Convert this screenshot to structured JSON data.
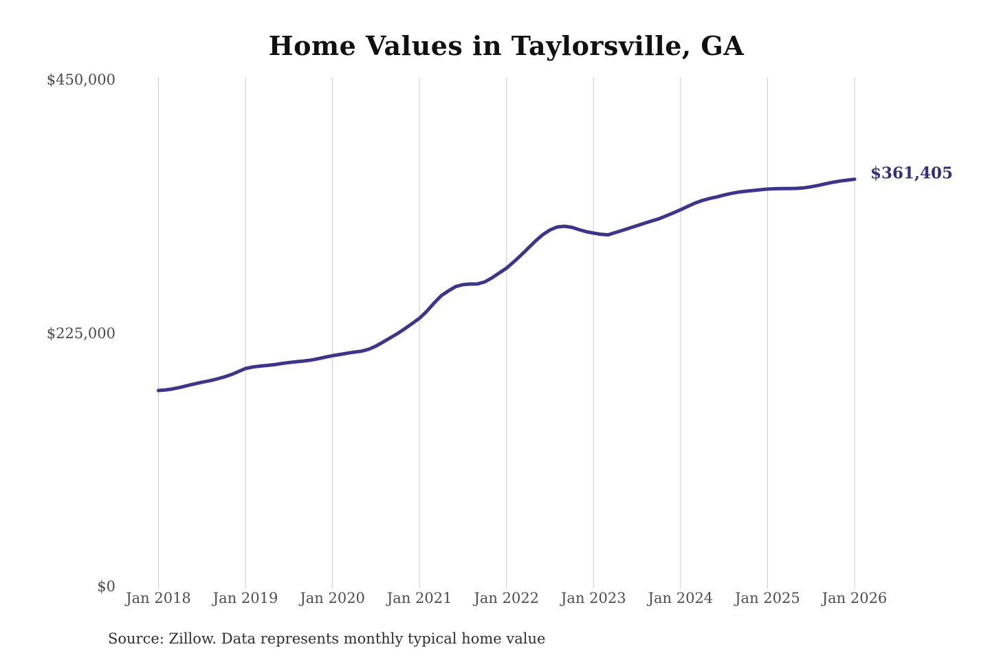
{
  "title": "Home Values in Taylorsville, GA",
  "source_note": "Source: Zillow. Data represents monthly typical home value",
  "end_label": "$361,405",
  "colors": {
    "line": "#3c3490",
    "end_label": "#34307e",
    "gridline": "#cbcbcb",
    "axis_text": "#4d4d4d",
    "title_text": "#111111",
    "background": "#ffffff"
  },
  "chart_data": {
    "type": "line",
    "title": "Home Values in Taylorsville, GA",
    "series_name": "Monthly typical home value",
    "x_interval": "monthly",
    "x_start": "Jan 2018",
    "x_end": "Jan 2026",
    "x_tick_labels": [
      "Jan 2018",
      "Jan 2019",
      "Jan 2020",
      "Jan 2021",
      "Jan 2022",
      "Jan 2023",
      "Jan 2024",
      "Jan 2025",
      "Jan 2026"
    ],
    "y_tick_labels": [
      "$450,000",
      "$225,000",
      "$0"
    ],
    "ylim": [
      0,
      450000
    ],
    "grid": "vertical-only",
    "legend": "none",
    "line_color": "#3c3490",
    "last_value_label": "$361,405",
    "last_value": 361405,
    "values": [
      174500,
      175100,
      176000,
      177300,
      178900,
      180400,
      181900,
      183100,
      184600,
      186400,
      188500,
      191200,
      194000,
      195300,
      196100,
      196700,
      197400,
      198400,
      199300,
      200000,
      200600,
      201400,
      202600,
      204000,
      205300,
      206400,
      207500,
      208500,
      209300,
      211000,
      213900,
      217500,
      221300,
      225000,
      229300,
      233800,
      238500,
      244500,
      251800,
      258400,
      262700,
      266500,
      268200,
      268700,
      268800,
      270600,
      274200,
      278500,
      282800,
      288300,
      294200,
      300500,
      306800,
      312400,
      316500,
      319200,
      319800,
      318900,
      316800,
      315000,
      313800,
      312700,
      312200,
      314200,
      316200,
      318300,
      320300,
      322400,
      324400,
      326400,
      328900,
      331600,
      334400,
      337400,
      340300,
      342600,
      344400,
      345800,
      347400,
      348900,
      350000,
      350800,
      351400,
      352100,
      352700,
      353000,
      353100,
      353100,
      353300,
      353800,
      354700,
      355900,
      357400,
      358700,
      359800,
      360600,
      361405
    ]
  }
}
